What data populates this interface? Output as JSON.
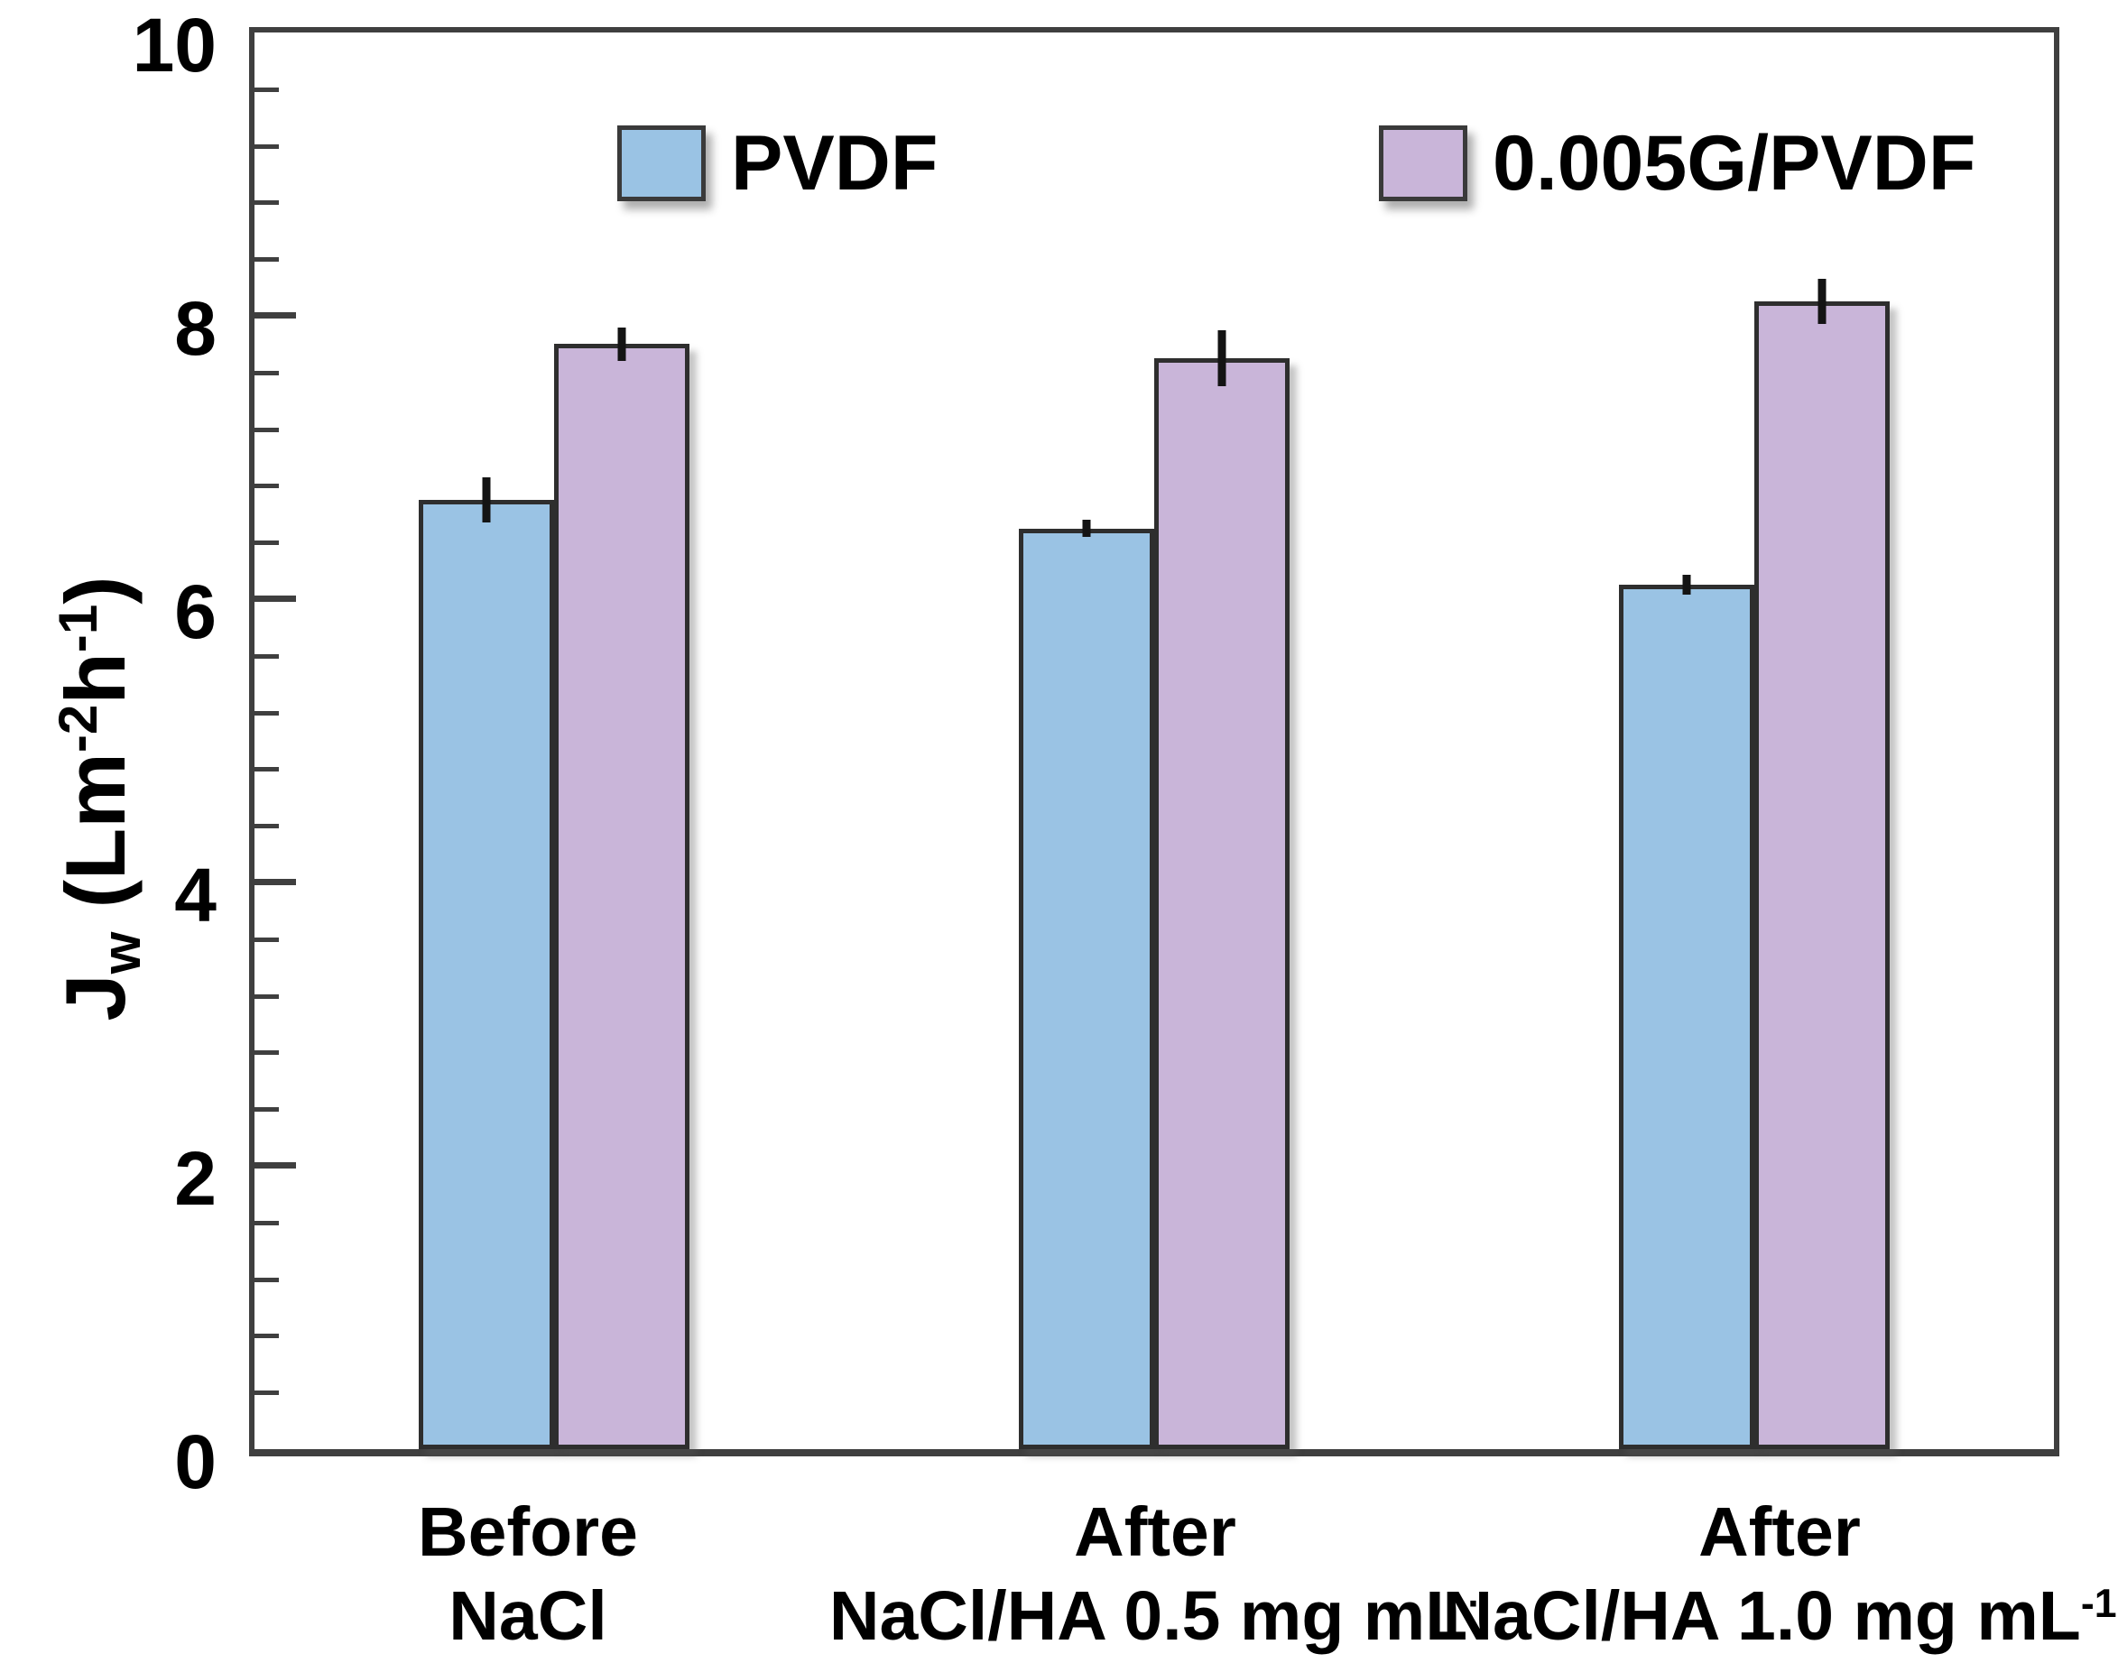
{
  "chart_data": {
    "type": "bar",
    "title": "",
    "y_axis_title": {
      "symbol": "J",
      "symbol_sub": "w",
      "unit_open": " (Lm",
      "unit_sup_1": "-2",
      "unit_h": "h",
      "unit_sup_2": "-1",
      "unit_close": ")"
    },
    "ylim": [
      0,
      10
    ],
    "yticks": [
      0,
      2,
      4,
      6,
      8,
      10
    ],
    "minor_tick_step": 0.4,
    "grid": false,
    "legend_position": "top-inside",
    "categories": [
      {
        "line1": "Before",
        "line2": "NaCl",
        "line2_sup": ""
      },
      {
        "line1": "After",
        "line2": "NaCl/HA 0.5 mg mL",
        "line2_sup": "·"
      },
      {
        "line1": "After",
        "line2": "NaCl/HA 1.0 mg mL",
        "line2_sup": "-1"
      }
    ],
    "series": [
      {
        "name": "PVDF",
        "color": "#9AC3E4",
        "values": [
          6.7,
          6.5,
          6.1
        ],
        "errors": [
          0.16,
          0.06,
          0.07
        ]
      },
      {
        "name": "0.005G/PVDF",
        "color": "#C9B5D9",
        "values": [
          7.8,
          7.7,
          8.1
        ],
        "errors": [
          0.12,
          0.2,
          0.16
        ]
      }
    ]
  }
}
